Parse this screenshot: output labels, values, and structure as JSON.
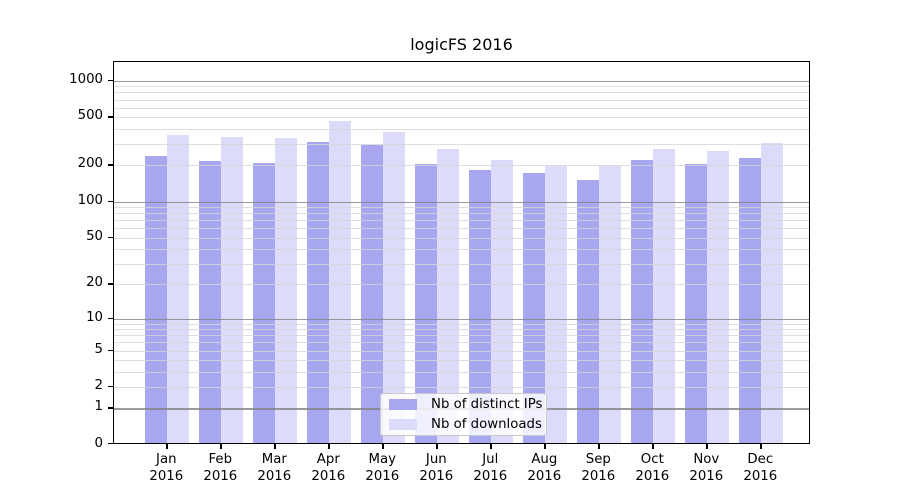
{
  "title": "logicFS 2016",
  "chart_data": {
    "type": "bar",
    "title": "logicFS 2016",
    "categories": [
      "Jan 2016",
      "Feb 2016",
      "Mar 2016",
      "Apr 2016",
      "May 2016",
      "Jun 2016",
      "Jul 2016",
      "Aug 2016",
      "Sep 2016",
      "Oct 2016",
      "Nov 2016",
      "Dec 2016"
    ],
    "series": [
      {
        "name": "Nb of distinct IPs",
        "key": "ips",
        "color": "#a7a7f0",
        "values": [
          238,
          218,
          209,
          312,
          293,
          207,
          182,
          173,
          152,
          220,
          207,
          230
        ]
      },
      {
        "name": "Nb of downloads",
        "key": "downloads",
        "color": "#dcdcfa",
        "values": [
          355,
          343,
          338,
          466,
          377,
          275,
          223,
          200,
          203,
          272,
          262,
          304
        ]
      }
    ],
    "y_scale": "log1p",
    "ylim": [
      0,
      1400
    ],
    "y_ticks": {
      "values": [
        0,
        1,
        2,
        5,
        10,
        20,
        50,
        100,
        200,
        500,
        1000
      ],
      "labels": [
        "0",
        "1",
        "2",
        "5",
        "10",
        "20",
        "50",
        "100",
        "200",
        "500",
        "1000"
      ]
    },
    "grid": true,
    "legend_position": "lower center inside plot"
  }
}
